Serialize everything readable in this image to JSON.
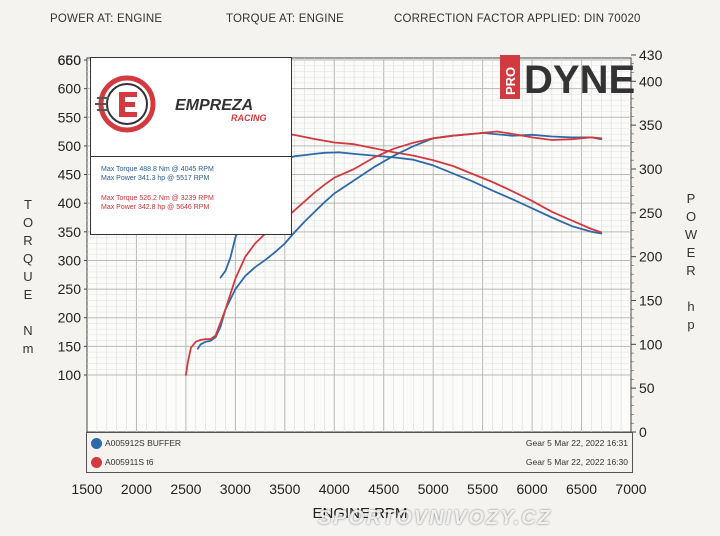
{
  "header": {
    "power_at": "POWER AT: ENGINE",
    "torque_at": "TORQUE AT: ENGINE",
    "correction": "CORRECTION FACTOR APPLIED: DIN 70020"
  },
  "logos": {
    "empreza_text": "EMPREZA",
    "empreza_sub": "RACING",
    "prodyne_pro": "PRO",
    "prodyne_dyne": "DYNE"
  },
  "stats": {
    "blue_torque": "Max Torque 488.8 Nm @ 4045 RPM",
    "blue_power": "Max Power 341.3 hp @ 5517 RPM",
    "red_torque": "Max Torque 526.2 Nm @ 3239 RPM",
    "red_power": "Max Power 342.8 hp @ 5646 RPM"
  },
  "runs": [
    {
      "name": "A005912S BUFFER",
      "date": "Gear 5 Mar 22, 2022 16:31",
      "color": "#2f6aa8"
    },
    {
      "name": "A005911S t6",
      "date": "Gear 5 Mar 22, 2022 16:30",
      "color": "#d23a3f"
    }
  ],
  "y_left_title": [
    "T",
    "O",
    "R",
    "Q",
    "U",
    "E",
    "",
    "N",
    "m"
  ],
  "y_right_title": [
    "P",
    "O",
    "W",
    "E",
    "R",
    "",
    "h",
    "p"
  ],
  "watermark": "SPORTOVNIVOZY.CZ",
  "chart_data": {
    "type": "line",
    "xlabel": "ENGINE RPM",
    "ylabel": "TORQUE Nm",
    "y2label": "POWER hp",
    "xlim": [
      1500,
      7000
    ],
    "ylim": [
      100,
      660
    ],
    "y2lim": [
      0,
      430
    ],
    "x_ticks": [
      1500,
      2000,
      2500,
      3000,
      3500,
      4000,
      4500,
      5000,
      5500,
      6000,
      6500,
      7000
    ],
    "y_ticks": [
      100,
      150,
      200,
      250,
      300,
      350,
      400,
      450,
      500,
      550,
      600,
      650,
      660
    ],
    "y2_ticks": [
      0,
      50,
      100,
      150,
      200,
      250,
      300,
      350,
      400,
      430
    ],
    "grid": true,
    "series": [
      {
        "name": "A005912S BUFFER",
        "kind": "torque",
        "axis": "left",
        "color": "#2f6aa8",
        "x": [
          2850,
          2900,
          2950,
          3000,
          3100,
          3200,
          3300,
          3400,
          3500,
          3600,
          3700,
          3800,
          3900,
          4000,
          4045,
          4200,
          4400,
          4600,
          4800,
          5000,
          5200,
          5400,
          5600,
          5800,
          6000,
          6200,
          6400,
          6600,
          6700
        ],
        "y": [
          270,
          282,
          305,
          340,
          382,
          408,
          440,
          463,
          476,
          482,
          484,
          486,
          488,
          488.5,
          488.8,
          486,
          483,
          480,
          476,
          466,
          452,
          438,
          422,
          407,
          391,
          375,
          360,
          350,
          347
        ]
      },
      {
        "name": "A005911S t6",
        "kind": "torque",
        "axis": "left",
        "color": "#d23a3f",
        "x": [
          2520,
          2550,
          2600,
          2650,
          2700,
          2800,
          2900,
          3000,
          3100,
          3239,
          3400,
          3600,
          3800,
          4000,
          4200,
          4400,
          4600,
          4800,
          5000,
          5200,
          5400,
          5600,
          5800,
          6000,
          6200,
          6400,
          6600,
          6700
        ],
        "y": [
          378,
          388,
          380,
          372,
          374,
          410,
          460,
          500,
          520,
          526.2,
          524,
          519,
          512,
          506,
          503,
          496,
          489,
          483,
          475,
          465,
          451,
          437,
          421,
          404,
          385,
          370,
          355,
          349
        ]
      },
      {
        "name": "A005912S BUFFER",
        "kind": "power",
        "axis": "right",
        "color": "#2f6aa8",
        "x": [
          2620,
          2650,
          2700,
          2750,
          2800,
          2850,
          2900,
          3000,
          3100,
          3200,
          3300,
          3400,
          3500,
          3600,
          3700,
          3800,
          3900,
          4000,
          4200,
          4400,
          4600,
          4800,
          5000,
          5200,
          5400,
          5517,
          5600,
          5800,
          6000,
          6200,
          6400,
          6600,
          6700
        ],
        "y": [
          95,
          100,
          103,
          104,
          108,
          120,
          140,
          163,
          178,
          188,
          196,
          205,
          215,
          228,
          240,
          251,
          262,
          272,
          287,
          302,
          315,
          326,
          335,
          338,
          340,
          341.3,
          340,
          338,
          339,
          337,
          336,
          336,
          334
        ]
      },
      {
        "name": "A005911S t6",
        "kind": "power",
        "axis": "right",
        "color": "#d23a3f",
        "x": [
          2500,
          2520,
          2550,
          2600,
          2650,
          2700,
          2750,
          2800,
          2900,
          3000,
          3100,
          3200,
          3300,
          3400,
          3500,
          3600,
          3700,
          3800,
          3900,
          4000,
          4200,
          4400,
          4600,
          4800,
          5000,
          5200,
          5400,
          5646,
          5800,
          6000,
          6200,
          6400,
          6600,
          6700
        ],
        "y": [
          65,
          80,
          96,
          103,
          105,
          106,
          106,
          110,
          140,
          175,
          200,
          215,
          226,
          234,
          243,
          253,
          263,
          273,
          282,
          290,
          300,
          313,
          323,
          330,
          335,
          338,
          340,
          342.8,
          340,
          336,
          333,
          334,
          336,
          335
        ]
      }
    ]
  }
}
